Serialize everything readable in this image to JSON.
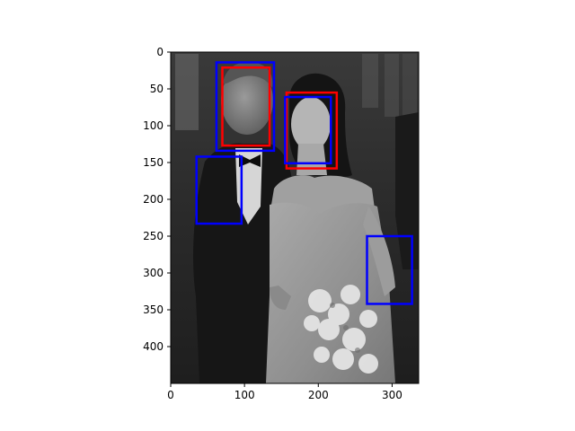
{
  "figure": {
    "x_ticks": [
      "0",
      "100",
      "200",
      "300"
    ],
    "y_ticks": [
      "0",
      "50",
      "100",
      "150",
      "200",
      "250",
      "300",
      "350",
      "400"
    ],
    "x_limits": [
      0,
      336
    ],
    "y_limits": [
      450,
      0
    ],
    "image_semantics": "grayscale-photo-couple-formal-event",
    "boxes": [
      {
        "color": "#0000ff",
        "x0": 62,
        "y0": 14,
        "x1": 140,
        "y1": 134
      },
      {
        "color": "#ff0000",
        "x0": 70,
        "y0": 21,
        "x1": 134,
        "y1": 127
      },
      {
        "color": "#ff0000",
        "x0": 157,
        "y0": 55,
        "x1": 225,
        "y1": 158
      },
      {
        "color": "#0000ff",
        "x0": 155,
        "y0": 61,
        "x1": 217,
        "y1": 151
      },
      {
        "color": "#0000ff",
        "x0": 35,
        "y0": 142,
        "x1": 96,
        "y1": 233
      },
      {
        "color": "#0000ff",
        "x0": 266,
        "y0": 250,
        "x1": 327,
        "y1": 342
      }
    ]
  }
}
